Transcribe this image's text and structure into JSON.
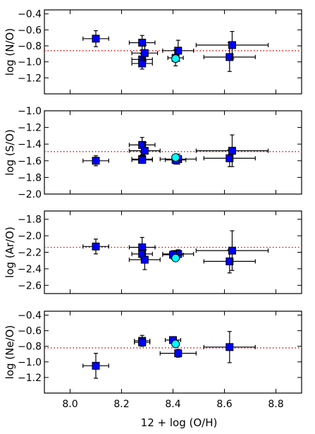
{
  "figure": {
    "xlabel": "12 + log (O/H)"
  },
  "colors": {
    "square": "#0000ff",
    "circle": "#00ffff",
    "reference": "#dd0000",
    "errorbar": "#000000"
  },
  "chart_data": [
    {
      "type": "scatter",
      "ylabel": "log (N/O)",
      "xlim": [
        7.9,
        8.9
      ],
      "ylim": [
        -1.4,
        -0.35
      ],
      "xticks": [
        8.0,
        8.2,
        8.4,
        8.6,
        8.8
      ],
      "yticks": [
        -0.4,
        -0.6,
        -0.8,
        -1.0,
        -1.2
      ],
      "ytick_labels": [
        "−0.4",
        "−0.6",
        "−0.8",
        "−1.0",
        "−1.2"
      ],
      "reference_line": -0.86,
      "series": [
        {
          "marker": "square",
          "points": [
            {
              "x": 8.1,
              "y": -0.71,
              "xerr": 0.05,
              "yerr": 0.1
            },
            {
              "x": 8.28,
              "y": -0.76,
              "xerr": 0.05,
              "yerr": 0.09
            },
            {
              "x": 8.28,
              "y": -0.97,
              "xerr": 0.04,
              "yerr": 0.07
            },
            {
              "x": 8.28,
              "y": -1.02,
              "xerr": 0.04,
              "yerr": 0.07
            },
            {
              "x": 8.29,
              "y": -0.89,
              "xerr": 0.05,
              "yerr": 0.1
            },
            {
              "x": 8.42,
              "y": -0.86,
              "xerr": 0.06,
              "yerr": 0.13
            },
            {
              "x": 8.41,
              "y": -0.95,
              "xerr": 0.03,
              "yerr": 0.1
            },
            {
              "x": 8.62,
              "y": -0.94,
              "xerr": 0.1,
              "yerr": 0.18
            },
            {
              "x": 8.63,
              "y": -0.79,
              "xerr": 0.14,
              "yerr": 0.17
            }
          ]
        },
        {
          "marker": "circle",
          "points": [
            {
              "x": 8.41,
              "y": -0.96,
              "xerr": 0.0,
              "yerr": 0.0
            }
          ]
        }
      ]
    },
    {
      "type": "scatter",
      "ylabel": "log (S/O)",
      "xlim": [
        7.9,
        8.9
      ],
      "ylim": [
        -2.0,
        -1.0
      ],
      "xticks": [
        8.0,
        8.2,
        8.4,
        8.6,
        8.8
      ],
      "yticks": [
        -1.0,
        -1.2,
        -1.4,
        -1.6,
        -1.8,
        -2.0
      ],
      "ytick_labels": [
        "−1.0",
        "−1.2",
        "−1.4",
        "−1.6",
        "−1.8",
        "−2.0"
      ],
      "reference_line": -1.49,
      "series": [
        {
          "marker": "square",
          "points": [
            {
              "x": 8.1,
              "y": -1.6,
              "xerr": 0.05,
              "yerr": 0.06
            },
            {
              "x": 8.28,
              "y": -1.41,
              "xerr": 0.05,
              "yerr": 0.09
            },
            {
              "x": 8.29,
              "y": -1.48,
              "xerr": 0.06,
              "yerr": 0.1
            },
            {
              "x": 8.28,
              "y": -1.58,
              "xerr": 0.04,
              "yerr": 0.05
            },
            {
              "x": 8.28,
              "y": -1.59,
              "xerr": 0.04,
              "yerr": 0.04
            },
            {
              "x": 8.42,
              "y": -1.58,
              "xerr": 0.07,
              "yerr": 0.06
            },
            {
              "x": 8.41,
              "y": -1.59,
              "xerr": 0.04,
              "yerr": 0.05
            },
            {
              "x": 8.62,
              "y": -1.57,
              "xerr": 0.1,
              "yerr": 0.1
            },
            {
              "x": 8.63,
              "y": -1.48,
              "xerr": 0.14,
              "yerr": 0.19
            }
          ]
        },
        {
          "marker": "circle",
          "points": [
            {
              "x": 8.41,
              "y": -1.56,
              "xerr": 0.0,
              "yerr": 0.0
            }
          ]
        }
      ]
    },
    {
      "type": "scatter",
      "ylabel": "log (Ar/O)",
      "xlim": [
        7.9,
        8.9
      ],
      "ylim": [
        -2.7,
        -1.7
      ],
      "xticks": [
        8.0,
        8.2,
        8.4,
        8.6,
        8.8
      ],
      "yticks": [
        -1.8,
        -2.0,
        -2.2,
        -2.4,
        -2.6
      ],
      "ytick_labels": [
        "−1.8",
        "−2.0",
        "−2.2",
        "−2.4",
        "−2.6"
      ],
      "reference_line": -2.14,
      "series": [
        {
          "marker": "square",
          "points": [
            {
              "x": 8.1,
              "y": -2.13,
              "xerr": 0.05,
              "yerr": 0.09
            },
            {
              "x": 8.28,
              "y": -2.14,
              "xerr": 0.05,
              "yerr": 0.12
            },
            {
              "x": 8.28,
              "y": -2.22,
              "xerr": 0.04,
              "yerr": 0.05
            },
            {
              "x": 8.29,
              "y": -2.29,
              "xerr": 0.06,
              "yerr": 0.12
            },
            {
              "x": 8.42,
              "y": -2.22,
              "xerr": 0.06,
              "yerr": 0.05
            },
            {
              "x": 8.4,
              "y": -2.23,
              "xerr": 0.04,
              "yerr": 0.05
            },
            {
              "x": 8.62,
              "y": -2.31,
              "xerr": 0.1,
              "yerr": 0.14
            },
            {
              "x": 8.63,
              "y": -2.18,
              "xerr": 0.14,
              "yerr": 0.24
            }
          ]
        },
        {
          "marker": "circle",
          "points": [
            {
              "x": 8.41,
              "y": -2.27,
              "xerr": 0.0,
              "yerr": 0.0
            }
          ]
        }
      ]
    },
    {
      "type": "scatter",
      "ylabel": "log (Ne/O)",
      "xlim": [
        7.9,
        8.9
      ],
      "ylim": [
        -1.4,
        -0.35
      ],
      "xticks": [
        8.0,
        8.2,
        8.4,
        8.6,
        8.8
      ],
      "xtick_labels": [
        "8.0",
        "8.2",
        "8.4",
        "8.6",
        "8.8"
      ],
      "yticks": [
        -0.4,
        -0.6,
        -0.8,
        -1.0,
        -1.2
      ],
      "ytick_labels": [
        "−0.4",
        "−0.6",
        "−0.8",
        "−1.0",
        "−1.2"
      ],
      "reference_line": -0.82,
      "series": [
        {
          "marker": "square",
          "points": [
            {
              "x": 8.1,
              "y": -1.05,
              "xerr": 0.05,
              "yerr": 0.16
            },
            {
              "x": 8.28,
              "y": -0.73,
              "xerr": 0.03,
              "yerr": 0.07
            },
            {
              "x": 8.28,
              "y": -0.75,
              "xerr": 0.03,
              "yerr": 0.04
            },
            {
              "x": 8.4,
              "y": -0.72,
              "xerr": 0.03,
              "yerr": 0.04
            },
            {
              "x": 8.42,
              "y": -0.89,
              "xerr": 0.07,
              "yerr": 0.05
            },
            {
              "x": 8.62,
              "y": -0.81,
              "xerr": 0.1,
              "yerr": 0.2
            }
          ]
        },
        {
          "marker": "circle",
          "points": [
            {
              "x": 8.41,
              "y": -0.77,
              "xerr": 0.0,
              "yerr": 0.0
            }
          ]
        }
      ]
    }
  ]
}
